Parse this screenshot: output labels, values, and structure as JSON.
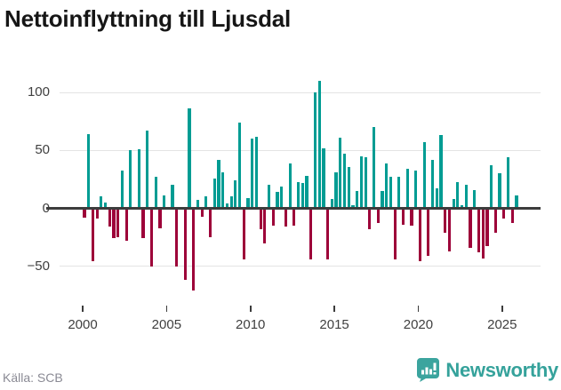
{
  "page": {
    "title": "Nettoinflyttning till Ljusdal"
  },
  "footer": {
    "source": "Källa: SCB",
    "brand": "Newsworthy"
  },
  "colors": {
    "positive_bar": "#009c93",
    "negative_bar": "#9d0239",
    "zero_line": "#3c3c3c",
    "gridline": "#e4e4e4",
    "axis_text": "#3f3f3f",
    "title_text": "#161616",
    "source_text": "#8a8a94",
    "brand_teal": "#35a29b"
  },
  "chart_data": {
    "type": "bar",
    "title": "Nettoinflyttning till Ljusdal",
    "xlabel": "",
    "ylabel": "",
    "ylim": [
      -80,
      115
    ],
    "grid": true,
    "yticks": [
      100,
      50,
      0,
      -50
    ],
    "ytick_labels": [
      "100",
      "50",
      "0",
      "−50"
    ],
    "xticks": [
      2000,
      2005,
      2010,
      2015,
      2020,
      2025
    ],
    "xtick_labels": [
      "2000",
      "2005",
      "2010",
      "2015",
      "2020",
      "2025"
    ],
    "positive_color": "#009c93",
    "negative_color": "#9d0239",
    "categories": [
      "2000Q1",
      "2000Q2",
      "2000Q3",
      "2000Q4",
      "2001Q1",
      "2001Q2",
      "2001Q3",
      "2001Q4",
      "2002Q1",
      "2002Q2",
      "2002Q3",
      "2002Q4",
      "2003Q1",
      "2003Q2",
      "2003Q3",
      "2003Q4",
      "2004Q1",
      "2004Q2",
      "2004Q3",
      "2004Q4",
      "2005Q1",
      "2005Q2",
      "2005Q3",
      "2005Q4",
      "2006Q1",
      "2006Q2",
      "2006Q3",
      "2006Q4",
      "2007Q1",
      "2007Q2",
      "2007Q3",
      "2007Q4",
      "2008Q1",
      "2008Q2",
      "2008Q3",
      "2008Q4",
      "2009Q1",
      "2009Q2",
      "2009Q3",
      "2009Q4",
      "2010Q1",
      "2010Q2",
      "2010Q3",
      "2010Q4",
      "2011Q1",
      "2011Q2",
      "2011Q3",
      "2011Q4",
      "2012Q1",
      "2012Q2",
      "2012Q3",
      "2012Q4",
      "2013Q1",
      "2013Q2",
      "2013Q3",
      "2013Q4",
      "2014Q1",
      "2014Q2",
      "2014Q3",
      "2014Q4",
      "2015Q1",
      "2015Q2",
      "2015Q3",
      "2015Q4",
      "2016Q1",
      "2016Q2",
      "2016Q3",
      "2016Q4",
      "2017Q1",
      "2017Q2",
      "2017Q3",
      "2017Q4",
      "2018Q1",
      "2018Q2",
      "2018Q3",
      "2018Q4",
      "2019Q1",
      "2019Q2",
      "2019Q3",
      "2019Q4",
      "2020Q1",
      "2020Q2",
      "2020Q3",
      "2020Q4",
      "2021Q1",
      "2021Q2",
      "2021Q3",
      "2021Q4",
      "2022Q1",
      "2022Q2",
      "2022Q3",
      "2022Q4",
      "2023Q1",
      "2023Q2",
      "2023Q3",
      "2023Q4",
      "2024Q1",
      "2024Q2",
      "2024Q3",
      "2024Q4",
      "2025Q1",
      "2025Q2",
      "2025Q3",
      "2025Q4"
    ],
    "values": [
      -8,
      64,
      -46,
      -9,
      10,
      5,
      -16,
      -26,
      -25,
      33,
      -28,
      50,
      0,
      51,
      -26,
      67,
      -50,
      27,
      -17,
      11,
      0,
      20,
      -50,
      0,
      -62,
      86,
      -71,
      7,
      -7,
      10,
      -25,
      26,
      42,
      31,
      4,
      10,
      24,
      74,
      -44,
      9,
      60,
      62,
      -18,
      -30,
      20,
      -15,
      14,
      19,
      -16,
      39,
      -15,
      23,
      22,
      28,
      -44,
      100,
      110,
      52,
      -44,
      8,
      31,
      61,
      47,
      36,
      3,
      15,
      45,
      44,
      -18,
      70,
      -13,
      15,
      39,
      27,
      -44,
      27,
      -14,
      34,
      -15,
      33,
      -46,
      57,
      -41,
      42,
      17,
      63,
      -21,
      -37,
      8,
      23,
      3,
      20,
      -34,
      16,
      -38,
      -43,
      -33,
      37,
      -21,
      30,
      -9,
      44,
      -13,
      11
    ]
  }
}
